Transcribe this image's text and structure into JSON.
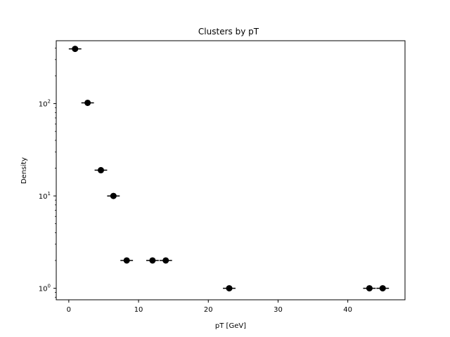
{
  "chart_data": {
    "type": "scatter",
    "title": "Clusters by pT",
    "xlabel": "pT [GeV]",
    "ylabel": "Density",
    "yscale": "log",
    "xlim": [
      -1.8,
      48.2
    ],
    "ylim": [
      0.75,
      480
    ],
    "x_ticks": [
      0,
      10,
      20,
      30,
      40
    ],
    "x_tick_labels": [
      "0",
      "10",
      "20",
      "30",
      "40"
    ],
    "y_ticks": [
      1,
      10,
      100
    ],
    "y_tick_labels": [
      {
        "base": "10",
        "exp": "0"
      },
      {
        "base": "10",
        "exp": "1"
      },
      {
        "base": "10",
        "exp": "2"
      }
    ],
    "grid": false,
    "legend": "none",
    "marker_color": "#000000",
    "error_bar": "horizontal",
    "points": [
      {
        "x": 0.9,
        "y": 392,
        "xerr": 0.9
      },
      {
        "x": 2.7,
        "y": 102,
        "xerr": 0.9
      },
      {
        "x": 4.6,
        "y": 19,
        "xerr": 0.9
      },
      {
        "x": 6.4,
        "y": 10,
        "xerr": 0.9
      },
      {
        "x": 8.3,
        "y": 2,
        "xerr": 0.9
      },
      {
        "x": 12.0,
        "y": 2,
        "xerr": 0.9
      },
      {
        "x": 13.9,
        "y": 2,
        "xerr": 0.9
      },
      {
        "x": 23.0,
        "y": 1,
        "xerr": 0.9
      },
      {
        "x": 43.1,
        "y": 1,
        "xerr": 0.9
      },
      {
        "x": 45.0,
        "y": 1,
        "xerr": 0.9
      }
    ]
  }
}
